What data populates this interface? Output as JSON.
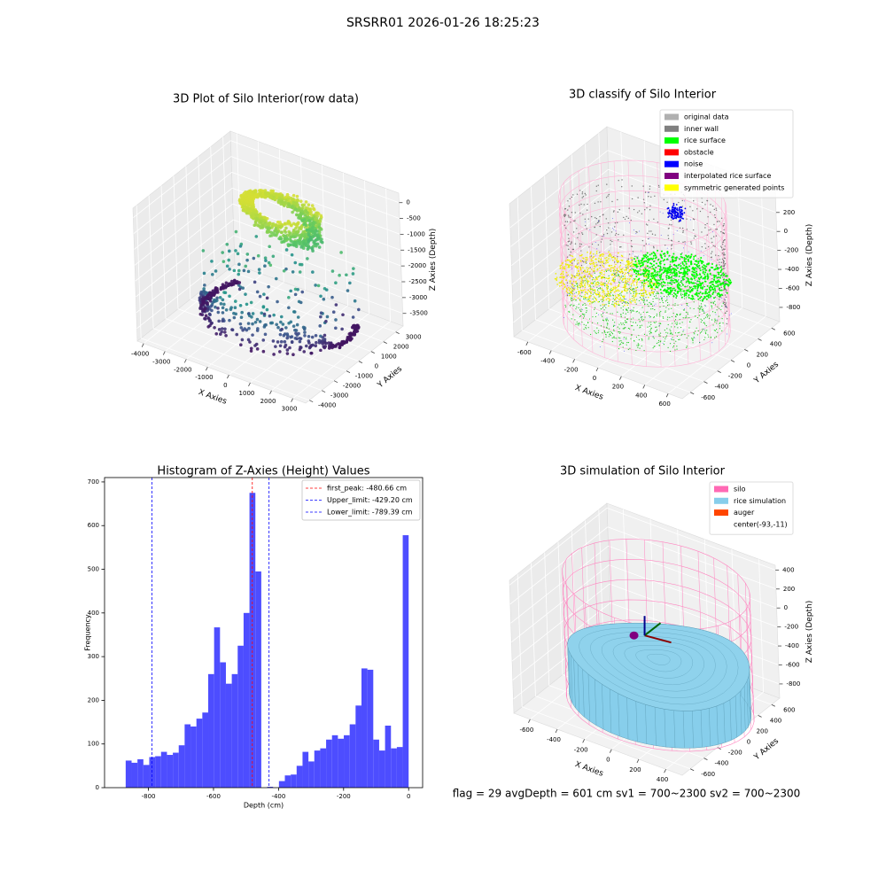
{
  "title": "SRSRR01 2026-01-26 18:25:23",
  "footer": "flag = 29  avgDepth = 601 cm  sv1 = 700~2300  sv2 = 700~2300",
  "chart_data": [
    {
      "type": "scatter3d",
      "title": "3D Plot of Silo Interior(row data)",
      "xlabel": "X Axies",
      "ylabel": "Y Axies",
      "zlabel": "Z Axies (Depth)",
      "xlim": [
        -4300,
        3600
      ],
      "ylim": [
        -4300,
        3600
      ],
      "zlim": [
        -3900,
        300
      ],
      "xticks": [
        -4000,
        -3000,
        -2000,
        -1000,
        0,
        1000,
        2000,
        3000
      ],
      "yticks": [
        -4000,
        -3000,
        -2000,
        -1000,
        0,
        1000,
        2000,
        3000
      ],
      "zticks": [
        -3500,
        -3000,
        -2500,
        -2000,
        -1500,
        -1000,
        -500,
        0
      ]
    },
    {
      "type": "classify3d",
      "title": "3D classify of Silo Interior",
      "xlabel": "X Axies",
      "ylabel": "Y Axies",
      "zlabel": "Z Axies (Depth)",
      "xlim": [
        -720,
        720
      ],
      "ylim": [
        -720,
        720
      ],
      "zlim": [
        -950,
        450
      ],
      "xticks": [
        -600,
        -400,
        -200,
        0,
        200,
        400,
        600
      ],
      "yticks": [
        -600,
        -400,
        -200,
        0,
        200,
        400,
        600
      ],
      "zticks": [
        -800,
        -600,
        -400,
        -200,
        0,
        200
      ],
      "legend": "upper right",
      "series": [
        {
          "name": "original data",
          "color": "#b0b0b0"
        },
        {
          "name": "inner wall",
          "color": "#808080"
        },
        {
          "name": "rice surface",
          "color": "#00ff00"
        },
        {
          "name": "obstacle",
          "color": "#ff0000"
        },
        {
          "name": "noise",
          "color": "#0000ff"
        },
        {
          "name": "interpolated rice surface",
          "color": "#800080"
        },
        {
          "name": "symmetric generated points",
          "color": "#ffff00"
        }
      ]
    },
    {
      "type": "histogram",
      "title": "Histogram of Z-Axies (Height) Values",
      "xlabel": "Depth (cm)",
      "ylabel": "Frequency",
      "color": "#4d4dff",
      "bins": [
        -870,
        -851.875,
        -833.75,
        -815.625,
        -797.5,
        -779.375,
        -761.25,
        -743.125,
        -725,
        -706.875,
        -688.75,
        -670.625,
        -652.5,
        -634.375,
        -616.25,
        -598.125,
        -580,
        -561.875,
        -543.75,
        -525.625,
        -507.5,
        -489.375,
        -471.25,
        -453.125,
        -435,
        -416.875,
        -398.75,
        -380.625,
        -362.5,
        -344.375,
        -326.25,
        -308.125,
        -290,
        -271.875,
        -253.75,
        -235.625,
        -217.5,
        -199.375,
        -181.25,
        -163.125,
        -145,
        -126.875,
        -108.75,
        -90.625,
        -72.5,
        -54.375,
        -36.25,
        -18.125,
        0
      ],
      "values": [
        62,
        57,
        65,
        52,
        70,
        72,
        82,
        75,
        80,
        97,
        145,
        140,
        158,
        172,
        260,
        367,
        287,
        238,
        260,
        325,
        400,
        675,
        495,
        0,
        2,
        0,
        15,
        28,
        30,
        50,
        82,
        60,
        85,
        90,
        110,
        120,
        112,
        120,
        145,
        188,
        273,
        270,
        110,
        85,
        142,
        90,
        93,
        578
      ],
      "xlim": [
        -935,
        43
      ],
      "ylim": [
        0,
        710
      ],
      "xticks": [
        -800,
        -600,
        -400,
        -200,
        0
      ],
      "yticks": [
        0,
        100,
        200,
        300,
        400,
        500,
        600,
        700
      ],
      "legend": "upper right",
      "lines": [
        {
          "name": "first_peak: -480.66 cm",
          "value": -480.66,
          "color": "#ff0000"
        },
        {
          "name": "Upper_limit: -429.20 cm",
          "value": -429.2,
          "color": "#0000ff"
        },
        {
          "name": "Lower_limit: -789.39 cm",
          "value": -789.39,
          "color": "#0000ff"
        }
      ]
    },
    {
      "type": "surface3d",
      "title": "3D simulation of Silo Interior",
      "xlabel": "X Axies",
      "ylabel": "Y Axies",
      "zlabel": "Z Axies (Depth)",
      "xlim": [
        -720,
        520
      ],
      "ylim": [
        -720,
        720
      ],
      "zlim": [
        -950,
        450
      ],
      "xticks": [
        -600,
        -400,
        -200,
        0,
        200,
        400
      ],
      "yticks": [
        -600,
        -400,
        -200,
        0,
        200,
        400,
        600
      ],
      "zticks": [
        -800,
        -600,
        -400,
        -200,
        0,
        200,
        400
      ],
      "legend": "upper right",
      "series": [
        {
          "name": "silo",
          "color": "#ff69b4"
        },
        {
          "name": "rice simulation",
          "color": "#87ceeb"
        },
        {
          "name": "auger",
          "color": "#ff4500"
        },
        {
          "name": "center(-93,-11)",
          "color": "#ffffff"
        }
      ]
    }
  ]
}
